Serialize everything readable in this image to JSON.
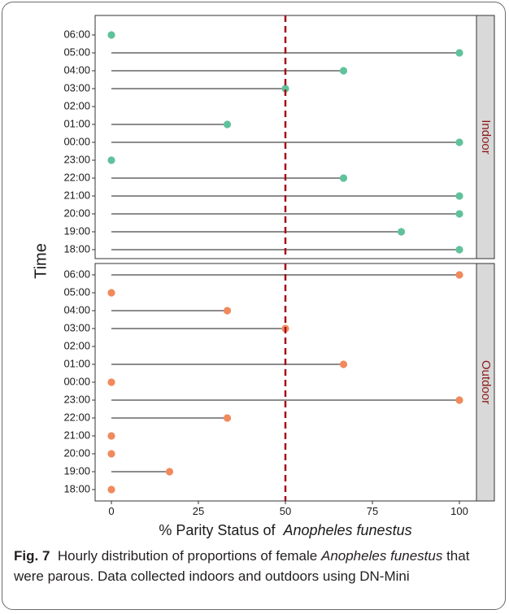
{
  "chart_data": {
    "type": "lollipop",
    "xlabel_prefix": "% Parity Status of",
    "xlabel_species": "Anopheles funestus",
    "ylabel": "Time",
    "xlim": [
      0,
      100
    ],
    "xticks": [
      0,
      25,
      50,
      75,
      100
    ],
    "reference_line_x": 50,
    "times": [
      "06:00",
      "05:00",
      "04:00",
      "03:00",
      "02:00",
      "01:00",
      "00:00",
      "23:00",
      "22:00",
      "21:00",
      "20:00",
      "19:00",
      "18:00"
    ],
    "panels": [
      {
        "label": "Indoor",
        "color": "#5fc29a",
        "values": [
          0,
          100,
          66.7,
          50,
          null,
          33.3,
          100,
          0,
          66.7,
          100,
          100,
          83.3,
          100
        ]
      },
      {
        "label": "Outdoor",
        "color": "#f08a5d",
        "values": [
          100,
          0,
          33.3,
          50,
          null,
          66.7,
          0,
          100,
          33.3,
          0,
          0,
          16.7,
          0
        ]
      }
    ]
  },
  "caption": {
    "fig_label": "Fig. 7",
    "text_1": "Hourly distribution of proportions of female",
    "species_1": "Anopheles",
    "species_2": "funestus",
    "text_2": "that were parous. Data collected indoors and outdoors using DN-Mini"
  },
  "colors": {
    "strip_fill": "#d9d9d9",
    "strip_text": "#8b1a1a",
    "refline": "#a50f15",
    "stem": "#1a1a1a"
  }
}
